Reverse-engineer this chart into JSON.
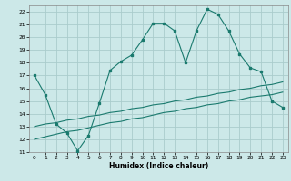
{
  "title": "",
  "xlabel": "Humidex (Indice chaleur)",
  "xlim": [
    -0.5,
    23.5
  ],
  "ylim": [
    11,
    22.5
  ],
  "xticks": [
    0,
    1,
    2,
    3,
    4,
    5,
    6,
    7,
    8,
    9,
    10,
    11,
    12,
    13,
    14,
    15,
    16,
    17,
    18,
    19,
    20,
    21,
    22,
    23
  ],
  "yticks": [
    11,
    12,
    13,
    14,
    15,
    16,
    17,
    18,
    19,
    20,
    21,
    22
  ],
  "bg_color": "#cce8e8",
  "grid_color": "#aacccc",
  "line_color": "#1a7a6e",
  "line1_x": [
    0,
    1,
    2,
    3,
    4,
    5,
    6,
    7,
    8,
    9,
    10,
    11,
    12,
    13,
    14,
    15,
    16,
    17,
    18,
    19,
    20,
    21,
    22,
    23
  ],
  "line1_y": [
    17.0,
    15.5,
    13.2,
    12.5,
    11.1,
    12.3,
    14.8,
    17.4,
    18.1,
    18.6,
    19.8,
    21.1,
    21.1,
    20.5,
    18.0,
    20.5,
    22.2,
    21.8,
    20.5,
    18.7,
    17.6,
    17.3,
    15.0,
    14.5
  ],
  "line2_x": [
    0,
    1,
    2,
    3,
    4,
    5,
    6,
    7,
    8,
    9,
    10,
    11,
    12,
    13,
    14,
    15,
    16,
    17,
    18,
    19,
    20,
    21,
    22,
    23
  ],
  "line2_y": [
    13.0,
    13.2,
    13.3,
    13.5,
    13.6,
    13.8,
    13.9,
    14.1,
    14.2,
    14.4,
    14.5,
    14.7,
    14.8,
    15.0,
    15.1,
    15.3,
    15.4,
    15.6,
    15.7,
    15.9,
    16.0,
    16.2,
    16.3,
    16.5
  ],
  "line3_x": [
    0,
    1,
    2,
    3,
    4,
    5,
    6,
    7,
    8,
    9,
    10,
    11,
    12,
    13,
    14,
    15,
    16,
    17,
    18,
    19,
    20,
    21,
    22,
    23
  ],
  "line3_y": [
    12.0,
    12.2,
    12.4,
    12.6,
    12.7,
    12.9,
    13.1,
    13.3,
    13.4,
    13.6,
    13.7,
    13.9,
    14.1,
    14.2,
    14.4,
    14.5,
    14.7,
    14.8,
    15.0,
    15.1,
    15.3,
    15.4,
    15.5,
    15.7
  ]
}
